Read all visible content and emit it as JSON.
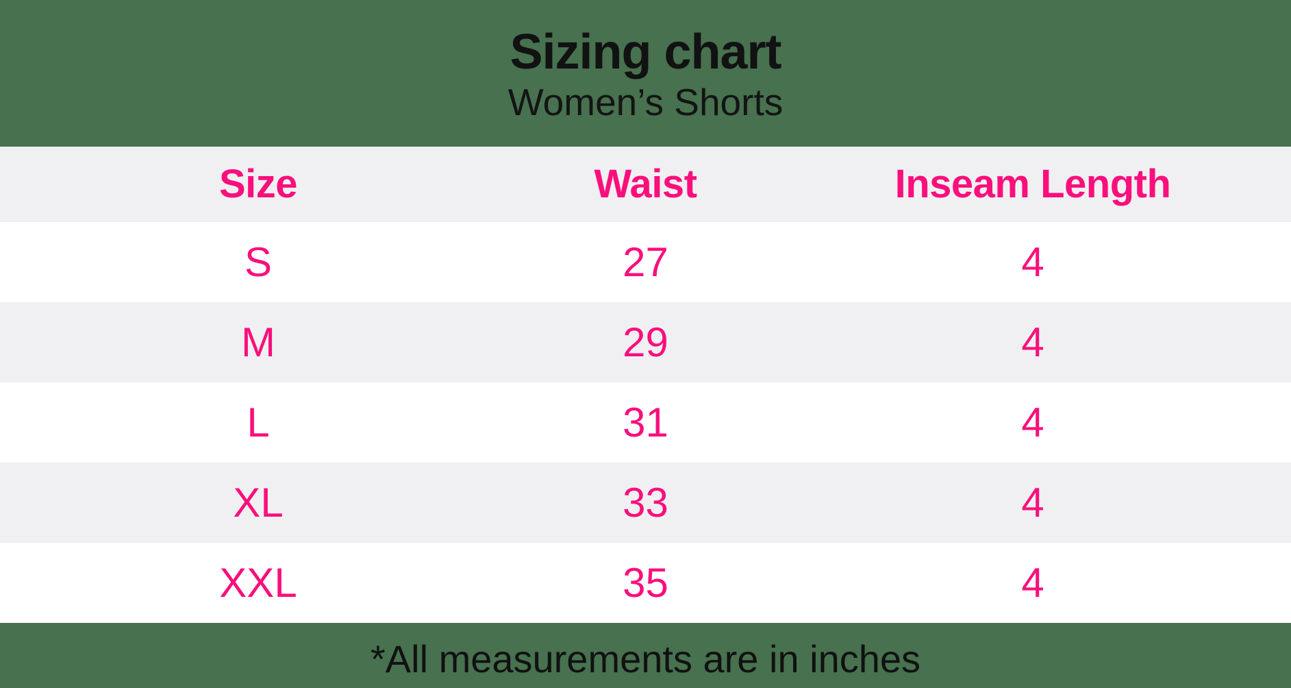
{
  "page": {
    "title": "Sizing chart",
    "subtitle": "Women’s Shorts",
    "footnote": "*All measurements are in inches"
  },
  "colors": {
    "background_green": "#47714f",
    "accent_pink": "#fa0f7c",
    "row_alt_gray": "#f0f0f2",
    "row_white": "#ffffff",
    "text_black": "#121212"
  },
  "chart_data": {
    "type": "table",
    "title": "Sizing chart",
    "subtitle": "Women’s Shorts",
    "columns": [
      "Size",
      "Waist",
      "Inseam Length"
    ],
    "rows": [
      [
        "S",
        "27",
        "4"
      ],
      [
        "M",
        "29",
        "4"
      ],
      [
        "L",
        "31",
        "4"
      ],
      [
        "XL",
        "33",
        "4"
      ],
      [
        "XXL",
        "35",
        "4"
      ]
    ],
    "footnote": "*All measurements are in inches",
    "units": "inches",
    "layout": {
      "column_alignment": "center",
      "alternating_row_colors": true,
      "header_background": "#f0f0f2"
    }
  }
}
